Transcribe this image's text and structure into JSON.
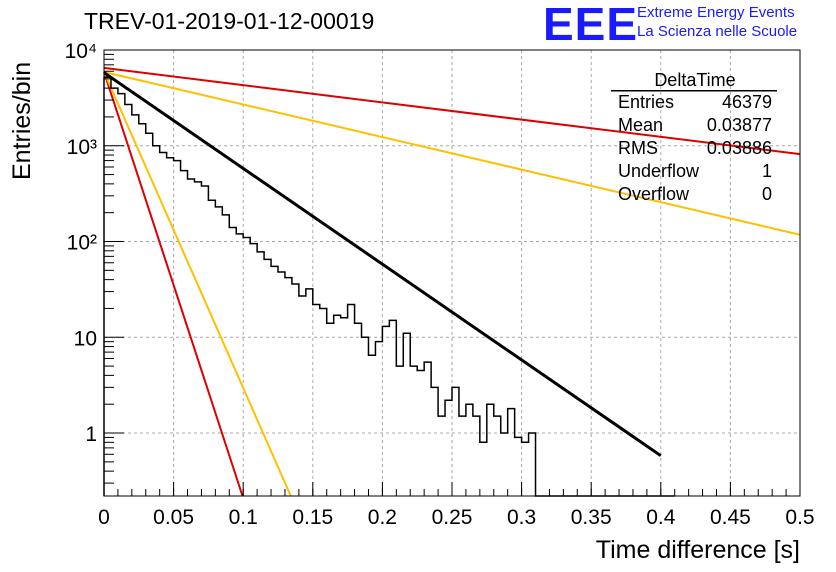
{
  "header": {
    "title": "TREV-01-2019-01-12-00019",
    "logo": "EEE",
    "logo_line1": "Extreme Energy Events",
    "logo_line2": "La Scienza nelle Scuole"
  },
  "stats": {
    "title": "DeltaTime",
    "rows": [
      {
        "label": "Entries",
        "value": "46379"
      },
      {
        "label": "Mean",
        "value": "0.03877"
      },
      {
        "label": "RMS",
        "value": "0.03886"
      },
      {
        "label": "Underflow",
        "value": "1"
      },
      {
        "label": "Overflow",
        "value": "0"
      }
    ]
  },
  "colors": {
    "histogram": "#000000",
    "fit": "#000000",
    "red": "#dd0000",
    "yellow": "#ffc000",
    "grid": "#aaaaaa"
  },
  "chart_data": {
    "type": "line",
    "title": "TREV-01-2019-01-12-00019",
    "xlabel": "Time difference [s]",
    "ylabel": "Entries/bin",
    "xlim": [
      0,
      0.5
    ],
    "ylim": [
      0.22,
      10000
    ],
    "yscale": "log",
    "grid": true,
    "x_ticks": [
      {
        "v": 0,
        "label": "0"
      },
      {
        "v": 0.05,
        "label": "0.05"
      },
      {
        "v": 0.1,
        "label": "0.1"
      },
      {
        "v": 0.15,
        "label": "0.15"
      },
      {
        "v": 0.2,
        "label": "0.2"
      },
      {
        "v": 0.25,
        "label": "0.25"
      },
      {
        "v": 0.3,
        "label": "0.3"
      },
      {
        "v": 0.35,
        "label": "0.35"
      },
      {
        "v": 0.4,
        "label": "0.4"
      },
      {
        "v": 0.45,
        "label": "0.45"
      },
      {
        "v": 0.5,
        "label": "0.5"
      }
    ],
    "y_ticks": [
      {
        "v": 1,
        "label": "1"
      },
      {
        "v": 10,
        "label": "10"
      },
      {
        "v": 100,
        "label": "10²"
      },
      {
        "v": 1000,
        "label": "10³"
      },
      {
        "v": 10000,
        "label": "10⁴"
      }
    ],
    "histogram": {
      "name": "DeltaTime",
      "bin_width": 0.005,
      "x_start": 0,
      "counts": [
        5200,
        4000,
        3500,
        2700,
        2100,
        1700,
        1350,
        1000,
        850,
        750,
        700,
        550,
        450,
        420,
        380,
        270,
        230,
        190,
        140,
        120,
        110,
        95,
        78,
        65,
        55,
        48,
        42,
        36,
        27,
        32,
        22,
        20,
        14,
        17,
        16,
        22,
        14,
        10,
        6.5,
        9,
        13,
        15,
        5,
        11,
        5,
        4.5,
        5.5,
        3,
        1.5,
        2.2,
        3,
        1.5,
        2,
        1.5,
        0.8,
        2,
        1.5,
        1,
        1.8,
        0.9,
        0.8,
        1,
        0,
        0,
        0,
        0,
        0,
        0,
        0,
        0,
        0,
        0,
        0,
        0,
        0,
        0,
        0,
        0,
        0,
        0,
        0,
        0
      ]
    },
    "fit": {
      "A0": 5800,
      "slope_log10": -10.0,
      "x_range": [
        0,
        0.4
      ]
    },
    "curves": [
      {
        "color": "red",
        "A0": 6500,
        "x_end_log10_slope": -1.8,
        "x_range": [
          0,
          0.5
        ]
      },
      {
        "color": "yellow",
        "A0": 5900,
        "x_end_log10_slope": -3.4,
        "x_range": [
          0,
          0.5
        ]
      },
      {
        "color": "red",
        "A0": 5900,
        "x_end_log10_slope": -44.5,
        "x_range": [
          0,
          0.105
        ]
      },
      {
        "color": "yellow",
        "A0": 5900,
        "x_end_log10_slope": -33.0,
        "x_range": [
          0,
          0.135
        ]
      }
    ]
  }
}
